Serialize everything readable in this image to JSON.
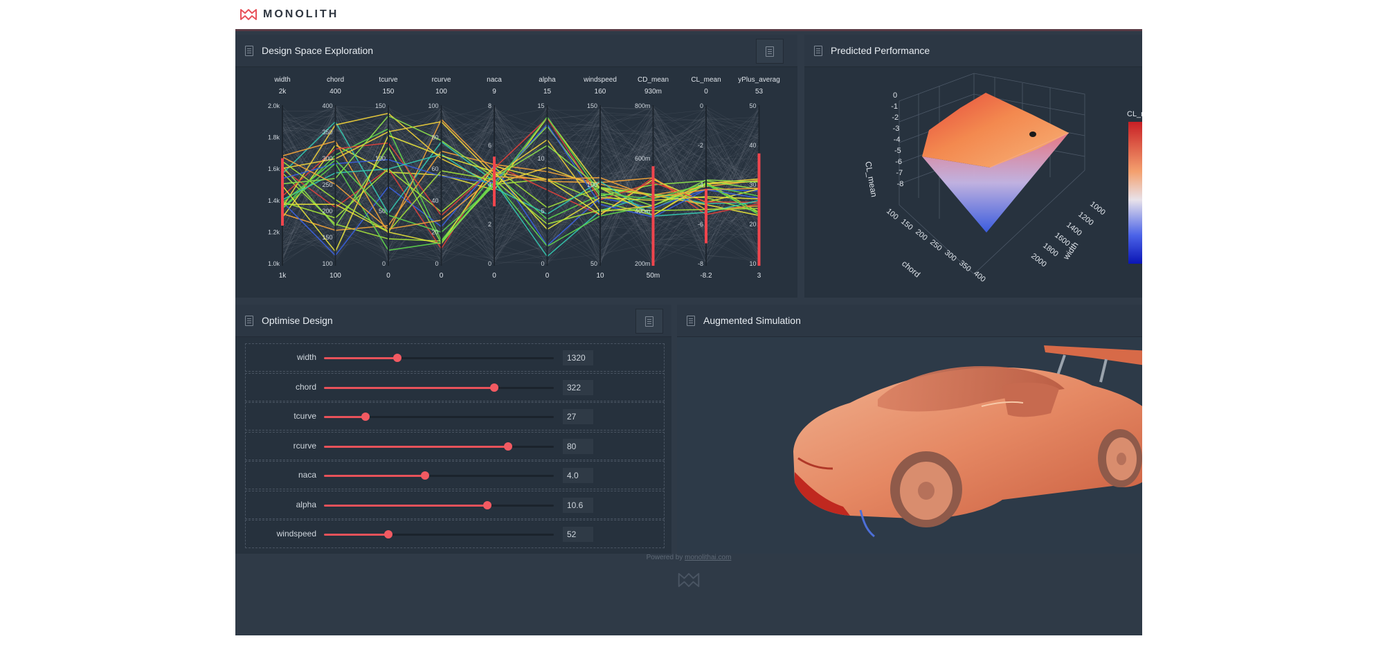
{
  "brand": {
    "name": "MONOLITH"
  },
  "panels": {
    "dse": {
      "title": "Design Space Exploration"
    },
    "pred": {
      "title": "Predicted Performance",
      "zlabel": "CL_mean",
      "xlabel": "chord",
      "ylabel": "width",
      "colorbar_label": "CL_m"
    },
    "opt": {
      "title": "Optimise Design"
    },
    "aug": {
      "title": "Augmented Simulation"
    }
  },
  "chart_data": [
    {
      "type": "parallel_coordinates",
      "axes": [
        {
          "name": "width",
          "top": "2k",
          "bottom": "1k",
          "ticks": [
            "2.0k",
            "1.8k",
            "1.6k",
            "1.4k",
            "1.2k",
            "1.0k"
          ]
        },
        {
          "name": "chord",
          "top": "400",
          "bottom": "100",
          "ticks": [
            "400",
            "350",
            "300",
            "250",
            "200",
            "150",
            "100"
          ]
        },
        {
          "name": "tcurve",
          "top": "150",
          "bottom": "0",
          "ticks": [
            "150",
            "100",
            "50",
            "0"
          ]
        },
        {
          "name": "rcurve",
          "top": "100",
          "bottom": "0",
          "ticks": [
            "100",
            "80",
            "60",
            "40",
            "20",
            "0"
          ]
        },
        {
          "name": "naca",
          "top": "9",
          "bottom": "0",
          "ticks": [
            "8",
            "6",
            "4",
            "2",
            "0"
          ]
        },
        {
          "name": "alpha",
          "top": "15",
          "bottom": "0",
          "ticks": [
            "15",
            "10",
            "5",
            "0"
          ]
        },
        {
          "name": "windspeed",
          "top": "160",
          "bottom": "10",
          "ticks": [
            "150",
            "100",
            "50"
          ]
        },
        {
          "name": "CD_mean",
          "top": "930m",
          "bottom": "50m",
          "ticks": [
            "800m",
            "600m",
            "400m",
            "200m"
          ]
        },
        {
          "name": "CL_mean",
          "top": "0",
          "bottom": "-8.2",
          "ticks": [
            "0",
            "-2",
            "-4",
            "-6",
            "-8"
          ]
        },
        {
          "name": "yPlus_averag",
          "top": "53",
          "bottom": "3",
          "ticks": [
            "50",
            "40",
            "30",
            "20",
            "10"
          ]
        }
      ]
    },
    {
      "type": "surface3d",
      "z_ticks": [
        "0",
        "-1",
        "-2",
        "-3",
        "-4",
        "-5",
        "-6",
        "-7",
        "-8"
      ],
      "x_ticks": [
        "100",
        "150",
        "200",
        "250",
        "300",
        "350",
        "400"
      ],
      "y_ticks": [
        "1000",
        "1200",
        "1400",
        "1600",
        "1800",
        "2000"
      ]
    }
  ],
  "sliders": [
    {
      "label": "width",
      "value": "1320",
      "fraction": 0.32
    },
    {
      "label": "chord",
      "value": "322",
      "fraction": 0.74
    },
    {
      "label": "tcurve",
      "value": "27",
      "fraction": 0.18
    },
    {
      "label": "rcurve",
      "value": "80",
      "fraction": 0.8
    },
    {
      "label": "naca",
      "value": "4.0",
      "fraction": 0.44
    },
    {
      "label": "alpha",
      "value": "10.6",
      "fraction": 0.71
    },
    {
      "label": "windspeed",
      "value": "52",
      "fraction": 0.28
    }
  ],
  "footer": {
    "prefix": "Powered by",
    "link": "monolithai.com"
  },
  "colors": {
    "accent": "#f25a62",
    "panel": "#27323e",
    "background": "#2f3a47"
  }
}
